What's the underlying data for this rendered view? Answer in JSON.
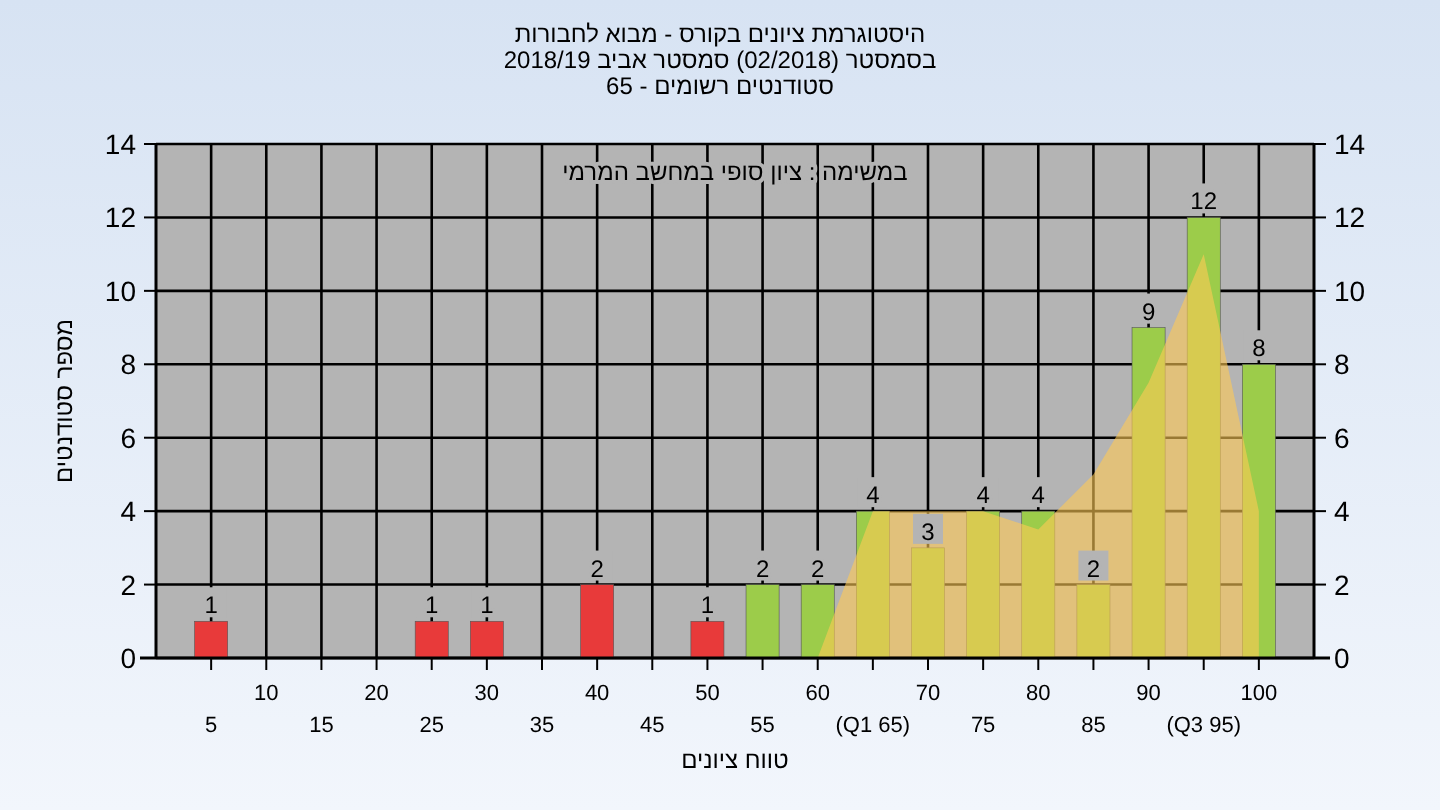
{
  "chart_data": {
    "type": "bar",
    "title": "היסטוגרמת ציונים בקורס - מבוא לחבורות",
    "subtitle": "בסמסטר  (02/2018)  סמסטר אביב 2018/19\nסטודנטים רשומים - 65",
    "xlabel": "טווח ציונים",
    "ylabel": "מספר סטודנטים",
    "annotations": [
      "במשימה : ציון סופי במחשב המרמי"
    ],
    "categories": [
      "5",
      "10",
      "15",
      "20",
      "25",
      "30",
      "35",
      "40",
      "45",
      "50",
      "55",
      "60",
      "(Q1 65)",
      "70",
      "75",
      "80",
      "85",
      "90",
      "(Q3 95)",
      "100"
    ],
    "series": [
      {
        "type": "area",
        "color": "#ffc955",
        "values": [
          null,
          null,
          null,
          null,
          null,
          null,
          null,
          null,
          null,
          null,
          null,
          0,
          4,
          4,
          4,
          3.5,
          5,
          7.5,
          11,
          4
        ]
      },
      {
        "colors": [
          "#e83a3a",
          "#e83a3a",
          "#e83a3a",
          "#e83a3a",
          "#e83a3a",
          "#e83a3a",
          "#e83a3a",
          "#e83a3a",
          "#e83a3a",
          "#e83a3a",
          "#9ccc4a",
          "#9ccc4a",
          "#9ccc4a",
          "#9ccc4a",
          "#9ccc4a",
          "#9ccc4a",
          "#9ccc4a",
          "#9ccc4a",
          "#9ccc4a",
          "#9ccc4a"
        ],
        "values": [
          1,
          0,
          0,
          0,
          1,
          1,
          0,
          2,
          0,
          1,
          2,
          2,
          4,
          3,
          4,
          4,
          2,
          9,
          12,
          8
        ],
        "value_labels": [
          "1",
          null,
          null,
          null,
          "1",
          "1",
          null,
          "2",
          null,
          "1",
          "2",
          "2",
          "4",
          "3",
          "4",
          "4",
          "2",
          "9",
          "12",
          "8"
        ]
      }
    ],
    "ylim": [
      0,
      14
    ],
    "yticks": [
      0,
      2,
      4,
      6,
      8,
      10,
      12,
      14
    ],
    "y2lim": [
      0,
      14
    ],
    "y2ticks": [
      0,
      2,
      4,
      6,
      8,
      10,
      12,
      14
    ],
    "grid": true
  }
}
